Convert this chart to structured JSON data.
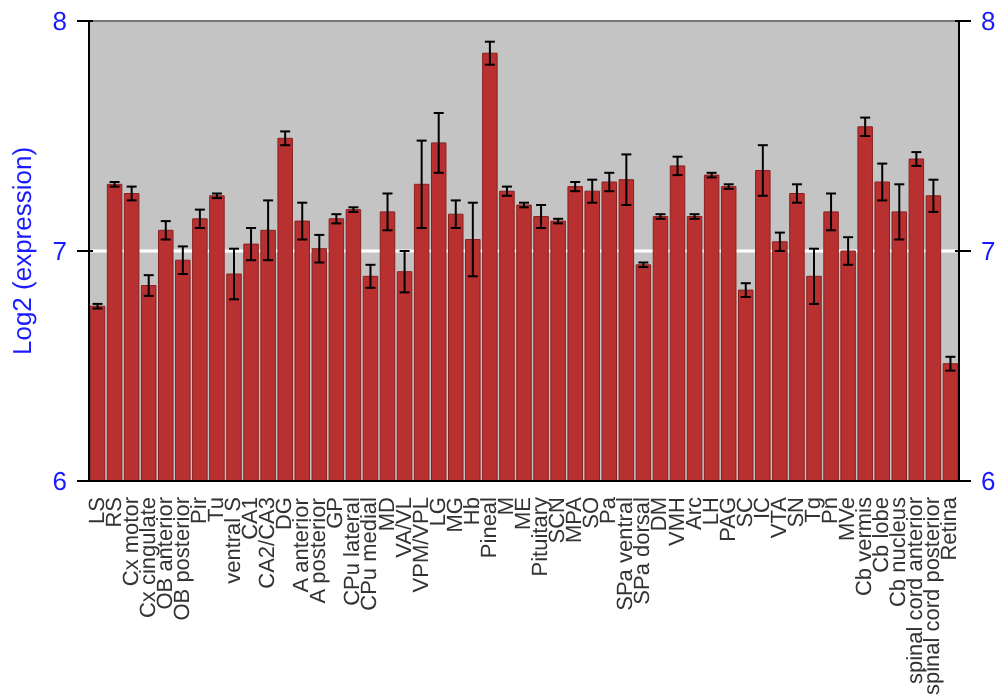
{
  "chart_data": {
    "type": "bar",
    "ylabel": "Log2 (expression)",
    "categories": [
      "LS",
      "RS",
      "Cx motor",
      "Cx cingulate",
      "OB anterior",
      "OB posterior",
      "Pir",
      "Tu",
      "ventral S",
      "CA1",
      "CA2/CA3",
      "DG",
      "A anterior",
      "A posterior",
      "GP",
      "CPu lateral",
      "CPu medial",
      "MD",
      "VA/VL",
      "VPM/VPL",
      "LG",
      "MG",
      "Hb",
      "Pineal",
      "M",
      "ME",
      "Pituitary",
      "SCN",
      "MPA",
      "SO",
      "Pa",
      "SPa ventral",
      "SPa dorsal",
      "DM",
      "VMH",
      "Arc",
      "LH",
      "PAG",
      "SC",
      "IC",
      "VTA",
      "SN",
      "Tg",
      "Pn",
      "MVe",
      "Cb vermis",
      "Cb lobe",
      "Cb nucleus",
      "spinal cord anterior",
      "spinal cord posterior",
      "Retina"
    ],
    "series": [
      {
        "color": "#b83030",
        "values": [
          6.76,
          7.29,
          7.25,
          6.85,
          7.09,
          6.96,
          7.14,
          7.24,
          6.9,
          7.03,
          7.09,
          7.49,
          7.13,
          7.01,
          7.14,
          7.18,
          6.89,
          7.17,
          6.91,
          7.29,
          7.47,
          7.16,
          7.05,
          7.86,
          7.26,
          7.2,
          7.15,
          7.13,
          7.28,
          7.26,
          7.3,
          7.31,
          6.94,
          7.15,
          7.37,
          7.15,
          7.33,
          7.28,
          6.83,
          7.35,
          7.04,
          7.25,
          6.89,
          7.17,
          7.0,
          7.54,
          7.3,
          7.17,
          7.4,
          7.24,
          6.51
        ],
        "errors": [
          0.01,
          0.01,
          0.03,
          0.045,
          0.04,
          0.06,
          0.04,
          0.01,
          0.11,
          0.07,
          0.13,
          0.03,
          0.08,
          0.06,
          0.02,
          0.01,
          0.05,
          0.08,
          0.09,
          0.19,
          0.13,
          0.06,
          0.16,
          0.05,
          0.02,
          0.01,
          0.05,
          0.01,
          0.02,
          0.05,
          0.04,
          0.11,
          0.01,
          0.01,
          0.04,
          0.01,
          0.01,
          0.01,
          0.03,
          0.11,
          0.04,
          0.04,
          0.12,
          0.08,
          0.06,
          0.04,
          0.08,
          0.12,
          0.03,
          0.07,
          0.03
        ]
      }
    ],
    "ylim": [
      6,
      8
    ],
    "yticks": [
      6,
      7,
      8
    ],
    "y2lim": [
      6,
      8
    ],
    "y2ticks": [
      6,
      7,
      8
    ],
    "grid": "y"
  }
}
